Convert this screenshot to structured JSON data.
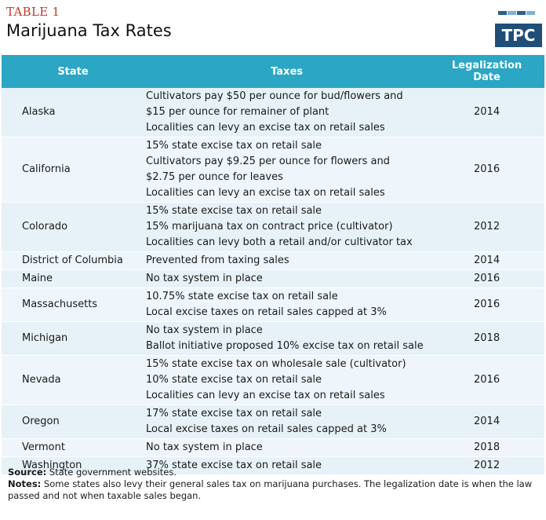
{
  "header": {
    "table_label": "TABLE 1",
    "title": "Marijuana Tax Rates",
    "logo_text": "TPC"
  },
  "columns": [
    "State",
    "Taxes",
    "Legalization Date"
  ],
  "rows": [
    {
      "state": "Alaska",
      "taxes": [
        "Cultivators pay $50 per ounce for bud/flowers and",
        "$15 per ounce for remainer of plant",
        "Localities can levy an excise tax on retail sales"
      ],
      "date": "2014"
    },
    {
      "state": "California",
      "taxes": [
        "15% state excise tax on retail sale",
        "Cultivators pay $9.25 per ounce for flowers and",
        "$2.75 per ounce for leaves",
        "Localities can levy an excise tax on retail sales"
      ],
      "date": "2016"
    },
    {
      "state": "Colorado",
      "taxes": [
        "15% state excise tax on retail sale",
        "15% marijuana tax on contract price (cultivator)",
        "Localities can levy both a retail and/or cultivator tax"
      ],
      "date": "2012"
    },
    {
      "state": "District of Columbia",
      "taxes": [
        "Prevented from taxing sales"
      ],
      "date": "2014"
    },
    {
      "state": "Maine",
      "taxes": [
        "No tax system in place"
      ],
      "date": "2016"
    },
    {
      "state": "Massachusetts",
      "taxes": [
        "10.75% state excise tax on retail sale",
        "Local excise taxes on retail sales capped at 3%"
      ],
      "date": "2016"
    },
    {
      "state": "Michigan",
      "taxes": [
        "No tax system in place",
        "Ballot initiative proposed 10% excise tax on retail sale"
      ],
      "date": "2018"
    },
    {
      "state": "Nevada",
      "taxes": [
        "15% state excise tax on wholesale sale (cultivator)",
        "10% state excise tax on retail sale",
        "Localities can levy an excise tax on retail sales"
      ],
      "date": "2016"
    },
    {
      "state": "Oregon",
      "taxes": [
        "17% state excise tax on retail sale",
        "Local excise taxes on retail sales capped at 3%"
      ],
      "date": "2014"
    },
    {
      "state": "Vermont",
      "taxes": [
        "No tax system in place"
      ],
      "date": "2018"
    },
    {
      "state": "Washington",
      "taxes": [
        "37% state excise tax on retail sale"
      ],
      "date": "2012"
    }
  ],
  "footer": {
    "source_label": "Source:",
    "source_text": " State government websites.",
    "notes_label": "Notes:",
    "notes_text": " Some states also levy their general sales tax on marijuana purchases. The legalization date is when the law passed and not when taxable sales began."
  }
}
